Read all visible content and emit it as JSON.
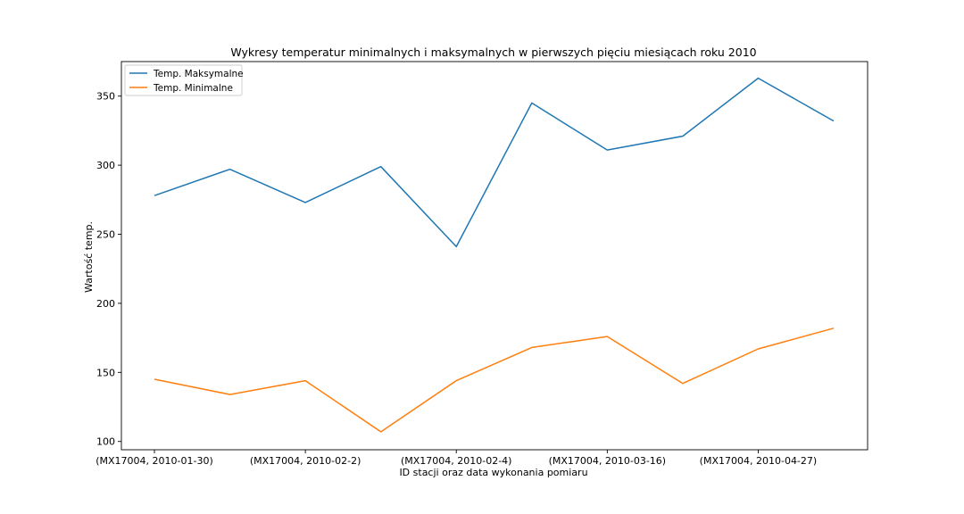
{
  "chart_data": {
    "type": "line",
    "title": "Wykresy temperatur minimalnych i maksymalnych w pierwszych pięciu miesiącach roku 2010",
    "xlabel": "ID stacji oraz data wykonania pomiaru",
    "ylabel": "Wartość temp.",
    "x_tick_labels": [
      "(MX17004, 2010-01-30)",
      "(MX17004, 2010-02-2)",
      "(MX17004, 2010-02-4)",
      "(MX17004, 2010-03-16)",
      "(MX17004, 2010-04-27)"
    ],
    "x_tick_every": 2,
    "y_ticks": [
      100,
      150,
      200,
      250,
      300,
      350
    ],
    "ylim": [
      94,
      375
    ],
    "grid": false,
    "legend_position": "top-left",
    "series": [
      {
        "name": "Temp. Maksymalne",
        "color": "#1f77b4",
        "values": [
          278,
          297,
          273,
          299,
          241,
          345,
          311,
          321,
          363,
          332
        ]
      },
      {
        "name": "Temp. Minimalne",
        "color": "#ff7f0e",
        "values": [
          145,
          134,
          144,
          107,
          144,
          168,
          176,
          142,
          167,
          182
        ]
      }
    ]
  }
}
